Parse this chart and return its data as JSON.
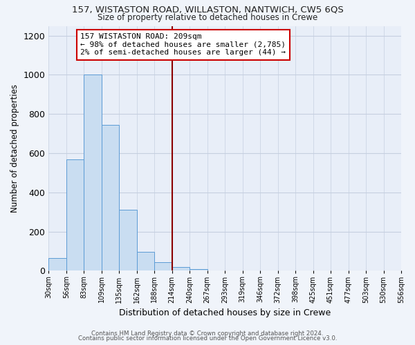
{
  "title": "157, WISTASTON ROAD, WILLASTON, NANTWICH, CW5 6QS",
  "subtitle": "Size of property relative to detached houses in Crewe",
  "xlabel": "Distribution of detached houses by size in Crewe",
  "ylabel": "Number of detached properties",
  "bar_values": [
    65,
    570,
    1000,
    745,
    310,
    95,
    42,
    20,
    10,
    0,
    0,
    0,
    0,
    0,
    0,
    0,
    0,
    0,
    0,
    0
  ],
  "bin_labels": [
    "30sqm",
    "56sqm",
    "83sqm",
    "109sqm",
    "135sqm",
    "162sqm",
    "188sqm",
    "214sqm",
    "240sqm",
    "267sqm",
    "293sqm",
    "319sqm",
    "346sqm",
    "372sqm",
    "398sqm",
    "425sqm",
    "451sqm",
    "477sqm",
    "503sqm",
    "530sqm",
    "556sqm"
  ],
  "bar_color": "#c9ddf1",
  "bar_edge_color": "#5b9bd5",
  "vline_color": "#8b0000",
  "annotation_title": "157 WISTASTON ROAD: 209sqm",
  "annotation_line1": "← 98% of detached houses are smaller (2,785)",
  "annotation_line2": "2% of semi-detached houses are larger (44) →",
  "annotation_box_color": "#ffffff",
  "annotation_box_edge": "#cc0000",
  "ylim": [
    0,
    1250
  ],
  "yticks": [
    0,
    200,
    400,
    600,
    800,
    1000,
    1200
  ],
  "footer_line1": "Contains HM Land Registry data © Crown copyright and database right 2024.",
  "footer_line2": "Contains public sector information licensed under the Open Government Licence v3.0.",
  "bg_color": "#f0f4fa",
  "plot_bg_color": "#e8eef8",
  "grid_color": "#c5cfe0"
}
